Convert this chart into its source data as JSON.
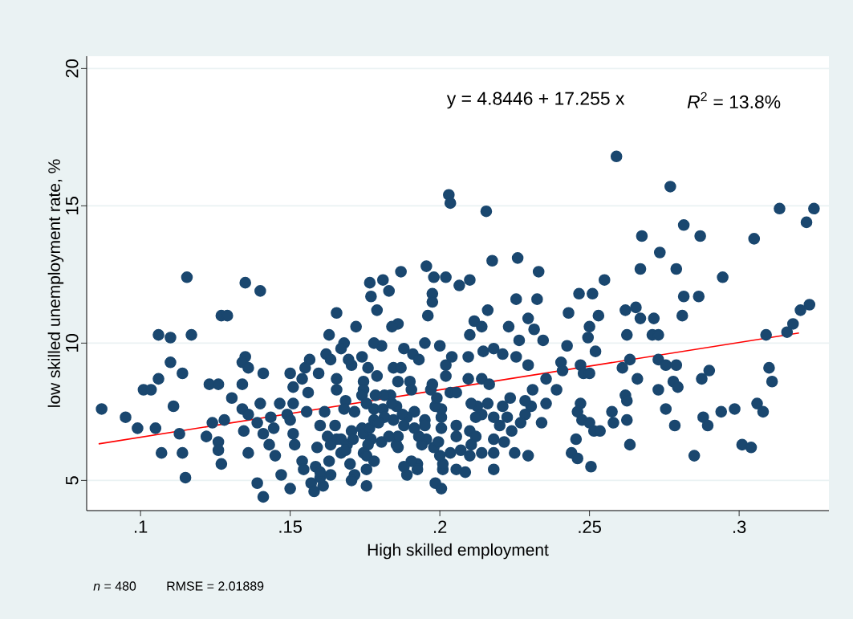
{
  "chart_data": {
    "type": "scatter",
    "xlabel": "High skilled employment",
    "ylabel": "low skilled unemployment rate, %",
    "annotations": [
      "y = 4.8446 + 17.255 x",
      "*R*$^{2}$ = 13.8%",
      "*n* = 480",
      "RMSE = 2.01889"
    ],
    "xlim": [
      0.082,
      0.33
    ],
    "ylim": [
      3.9,
      20.45
    ],
    "xticks": [
      {
        "value": 0.1,
        "label": ".1"
      },
      {
        "value": 0.15,
        "label": ".15"
      },
      {
        "value": 0.2,
        "label": ".2"
      },
      {
        "value": 0.25,
        "label": ".25"
      },
      {
        "value": 0.3,
        "label": ".3"
      }
    ],
    "yticks": [
      5,
      10,
      15,
      20
    ],
    "grid": "y",
    "marker": "circle",
    "series": [
      {
        "color": "#1a476f",
        "x": [
          0.087,
          0.095,
          0.099,
          0.101,
          0.1035,
          0.106,
          0.106,
          0.11,
          0.11,
          0.114,
          0.111,
          0.105,
          0.107,
          0.114,
          0.115,
          0.113,
          0.1155,
          0.117,
          0.123,
          0.126,
          0.122,
          0.124,
          0.128,
          0.126,
          0.126,
          0.127,
          0.127,
          0.129,
          0.1305,
          0.134,
          0.135,
          0.134,
          0.136,
          0.141,
          0.135,
          0.14,
          0.134,
          0.1345,
          0.139,
          0.136,
          0.136,
          0.139,
          0.141,
          0.141,
          0.143,
          0.14,
          0.1435,
          0.1445,
          0.145,
          0.147,
          0.1465,
          0.15,
          0.151,
          0.151,
          0.149,
          0.15,
          0.151,
          0.1515,
          0.15,
          0.154,
          0.1545,
          0.157,
          0.158,
          0.161,
          0.1565,
          0.155,
          0.154,
          0.156,
          0.1555,
          0.1595,
          0.162,
          0.1635,
          0.1655,
          0.163,
          0.16,
          0.1615,
          0.1625,
          0.159,
          0.1585,
          0.16,
          0.1635,
          0.163,
          0.1655,
          0.1655,
          0.172,
          0.168,
          0.1766,
          0.177,
          0.181,
          0.183,
          0.179,
          0.187,
          0.186,
          0.184,
          0.1955,
          0.198,
          0.202,
          0.1975,
          0.1975,
          0.196,
          0.203,
          0.2035,
          0.2155,
          0.2065,
          0.21,
          0.2175,
          0.226,
          0.233,
          0.2255,
          0.2325,
          0.216,
          0.2115,
          0.214,
          0.223,
          0.2295,
          0.2315,
          0.2265,
          0.21,
          0.195,
          0.2,
          0.188,
          0.1805,
          0.178,
          0.191,
          0.193,
          0.204,
          0.2095,
          0.2145,
          0.218,
          0.221,
          0.2255,
          0.2295,
          0.2345,
          0.243,
          0.2425,
          0.2405,
          0.241,
          0.239,
          0.2355,
          0.231,
          0.2355,
          0.234,
          0.2305,
          0.2285,
          0.2285,
          0.2235,
          0.221,
          0.216,
          0.2125,
          0.2105,
          0.214,
          0.212,
          0.218,
          0.22,
          0.224,
          0.2225,
          0.227,
          0.2215,
          0.225,
          0.2295,
          0.218,
          0.218,
          0.218,
          0.214,
          0.21,
          0.2105,
          0.21,
          0.212,
          0.2055,
          0.2055,
          0.207,
          0.2035,
          0.2055,
          0.2085,
          0.1985,
          0.2005,
          0.201,
          0.201,
          0.2,
          0.198,
          0.1995,
          0.2005,
          0.2005,
          0.2005,
          0.1985,
          0.199,
          0.197,
          0.1975,
          0.2035,
          0.2055,
          0.202,
          0.202,
          0.2095,
          0.214,
          0.2165,
          0.195,
          0.195,
          0.1955,
          0.194,
          0.193,
          0.1915,
          0.1915,
          0.189,
          0.188,
          0.1875,
          0.1925,
          0.1925,
          0.1905,
          0.189,
          0.188,
          0.186,
          0.1855,
          0.186,
          0.1845,
          0.1855,
          0.184,
          0.1835,
          0.1815,
          0.1785,
          0.186,
          0.19,
          0.1905,
          0.1845,
          0.187,
          0.176,
          0.174,
          0.1705,
          0.1695,
          0.167,
          0.1745,
          0.179,
          0.1745,
          0.174,
          0.1755,
          0.1715,
          0.1685,
          0.168,
          0.165,
          0.1655,
          0.167,
          0.1635,
          0.169,
          0.1705,
          0.171,
          0.174,
          0.1745,
          0.1765,
          0.177,
          0.176,
          0.178,
          0.178,
          0.181,
          0.1815,
          0.1795,
          0.1805,
          0.183,
          0.1745,
          0.1755,
          0.178,
          0.1755,
          0.1755,
          0.1715,
          0.1705,
          0.17,
          0.167,
          0.1685,
          0.16,
          0.259,
          0.277,
          0.3135,
          0.325,
          0.3225,
          0.2815,
          0.2675,
          0.287,
          0.305,
          0.2735,
          0.267,
          0.279,
          0.2945,
          0.255,
          0.2465,
          0.251,
          0.2815,
          0.2865,
          0.3235,
          0.3205,
          0.318,
          0.316,
          0.309,
          0.253,
          0.262,
          0.2655,
          0.267,
          0.2715,
          0.281,
          0.25,
          0.2495,
          0.2625,
          0.271,
          0.273,
          0.252,
          0.2635,
          0.273,
          0.247,
          0.2755,
          0.279,
          0.261,
          0.31,
          0.248,
          0.25,
          0.29,
          0.266,
          0.2875,
          0.311,
          0.278,
          0.2795,
          0.273,
          0.262,
          0.2625,
          0.247,
          0.246,
          0.2575,
          0.2755,
          0.294,
          0.2985,
          0.306,
          0.308,
          0.2475,
          0.25,
          0.258,
          0.2625,
          0.288,
          0.2515,
          0.2535,
          0.2785,
          0.2895,
          0.2455,
          0.2635,
          0.301,
          0.304,
          0.244,
          0.246,
          0.2505,
          0.285
        ],
        "values": [
          7.6,
          7.3,
          6.9,
          8.3,
          8.3,
          8.7,
          10.3,
          10.2,
          9.3,
          8.9,
          7.7,
          6.9,
          6.0,
          6.0,
          5.1,
          6.7,
          12.4,
          10.3,
          8.5,
          8.5,
          6.6,
          7.1,
          7.2,
          6.4,
          6.1,
          5.6,
          11.0,
          11.0,
          8.0,
          8.5,
          9.5,
          9.3,
          9.1,
          8.9,
          12.2,
          11.9,
          7.6,
          6.8,
          7.1,
          7.4,
          6.0,
          4.9,
          4.4,
          6.7,
          6.3,
          7.8,
          7.3,
          6.9,
          5.9,
          5.2,
          7.8,
          8.9,
          8.4,
          7.8,
          7.4,
          7.2,
          6.7,
          6.3,
          4.7,
          5.7,
          5.4,
          4.9,
          4.6,
          4.8,
          9.4,
          9.1,
          8.7,
          8.2,
          7.5,
          8.9,
          9.6,
          9.4,
          11.1,
          10.3,
          7.0,
          7.5,
          6.6,
          6.2,
          5.5,
          5.1,
          5.2,
          5.7,
          8.3,
          8.7,
          10.6,
          10.0,
          12.2,
          11.7,
          12.3,
          11.9,
          11.2,
          12.6,
          10.7,
          10.6,
          12.8,
          12.4,
          12.4,
          11.8,
          11.5,
          11.0,
          15.4,
          15.1,
          14.8,
          12.1,
          12.3,
          13.0,
          13.1,
          12.6,
          11.6,
          11.6,
          11.2,
          10.8,
          10.6,
          10.6,
          10.9,
          10.5,
          10.1,
          10.3,
          10.0,
          9.9,
          9.8,
          9.9,
          10.0,
          9.6,
          9.4,
          9.5,
          9.5,
          9.7,
          9.8,
          9.6,
          9.5,
          9.2,
          10.1,
          11.1,
          9.9,
          9.3,
          9.0,
          8.3,
          8.7,
          8.3,
          7.8,
          7.1,
          7.7,
          7.9,
          7.4,
          8.0,
          7.7,
          7.8,
          7.7,
          7.8,
          7.4,
          7.3,
          7.3,
          7.0,
          6.8,
          7.3,
          7.1,
          6.4,
          6.0,
          5.9,
          6.5,
          6.0,
          5.4,
          6.0,
          5.9,
          6.3,
          6.8,
          6.6,
          7.0,
          6.6,
          6.1,
          6.0,
          5.4,
          5.3,
          4.9,
          4.7,
          5.4,
          5.6,
          5.9,
          6.2,
          6.4,
          6.9,
          7.3,
          7.6,
          7.7,
          8.0,
          8.3,
          8.5,
          8.2,
          8.2,
          8.8,
          9.2,
          8.7,
          8.7,
          8.5,
          7.2,
          7.0,
          6.5,
          6.3,
          6.6,
          7.5,
          6.9,
          7.3,
          7.0,
          7.4,
          5.6,
          5.4,
          5.7,
          5.2,
          5.5,
          6.2,
          6.3,
          6.6,
          7.2,
          7.7,
          7.8,
          8.1,
          8.1,
          8.1,
          8.6,
          8.6,
          8.3,
          9.1,
          9.1,
          9.1,
          9.5,
          9.2,
          9.4,
          9.8,
          8.6,
          8.8,
          8.3,
          8.1,
          7.8,
          7.5,
          7.9,
          7.6,
          7.0,
          6.5,
          6.5,
          6.3,
          6.3,
          6.8,
          6.5,
          6.9,
          6.7,
          6.9,
          6.5,
          6.3,
          7.2,
          7.6,
          7.6,
          7.3,
          7.1,
          6.4,
          6.6,
          6.0,
          5.9,
          5.7,
          5.4,
          4.8,
          5.2,
          5.0,
          5.6,
          6.0,
          6.1,
          5.3,
          16.8,
          15.7,
          14.9,
          14.9,
          14.4,
          14.3,
          13.9,
          13.9,
          13.8,
          13.3,
          12.7,
          12.7,
          12.4,
          12.3,
          11.8,
          11.8,
          11.7,
          11.7,
          11.4,
          11.2,
          10.7,
          10.4,
          10.3,
          11.0,
          11.2,
          11.3,
          10.9,
          10.9,
          11.0,
          10.6,
          10.2,
          10.3,
          10.3,
          10.3,
          9.7,
          9.4,
          9.4,
          9.2,
          9.2,
          9.2,
          9.1,
          9.1,
          8.9,
          8.9,
          9.0,
          8.7,
          8.7,
          8.6,
          8.6,
          8.4,
          8.3,
          8.1,
          7.9,
          7.8,
          7.5,
          7.5,
          7.6,
          7.5,
          7.6,
          7.8,
          7.5,
          7.2,
          7.1,
          7.1,
          7.2,
          7.3,
          6.8,
          6.8,
          7.0,
          7.0,
          6.5,
          6.3,
          6.3,
          6.2,
          6.0,
          5.8,
          5.5,
          5.9
        ]
      },
      {
        "type": "line",
        "color": "#ff0000",
        "marker": "none",
        "x": [
          0.086,
          0.32
        ],
        "values": [
          6.33,
          10.37
        ]
      }
    ]
  }
}
